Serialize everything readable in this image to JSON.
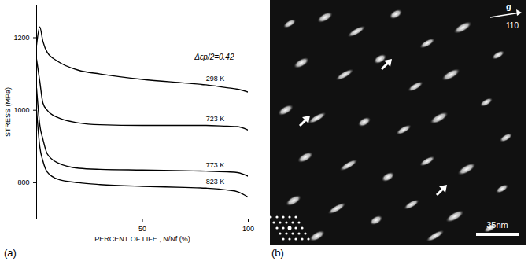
{
  "chart_data": {
    "type": "line",
    "x_label": "PERCENT OF LIFE , N/Nf (%)",
    "y_label": "STRESS (MPa)",
    "annotations": [
      "Δεp/2=0.42"
    ],
    "x": [
      0,
      1.5,
      3,
      5,
      10,
      20,
      30,
      50,
      70,
      80,
      90,
      95,
      100
    ],
    "series": [
      {
        "name": "298 K",
        "color": "#000000",
        "values": [
          1180,
          1230,
          1190,
          1160,
          1135,
          1110,
          1100,
          1085,
          1075,
          1070,
          1062,
          1058,
          1050
        ]
      },
      {
        "name": "723 K",
        "color": "#000000",
        "values": [
          1140,
          1080,
          1020,
          1000,
          980,
          965,
          960,
          958,
          958,
          958,
          956,
          955,
          945
        ]
      },
      {
        "name": "773 K",
        "color": "#000000",
        "values": [
          1060,
          960,
          920,
          880,
          855,
          840,
          837,
          835,
          833,
          832,
          830,
          828,
          818
        ]
      },
      {
        "name": "823 K",
        "color": "#000000",
        "values": [
          1000,
          900,
          860,
          830,
          810,
          800,
          795,
          790,
          787,
          785,
          780,
          775,
          760
        ]
      }
    ],
    "xlim": [
      0,
      100
    ],
    "xticks": [
      50,
      100
    ],
    "ylim": [
      700,
      1290
    ],
    "yticks": [
      800,
      1000,
      1200
    ],
    "grid": false
  },
  "micrograph": {
    "vector": "g",
    "index": "110",
    "scale_bar": "35nm"
  },
  "panel_labels": [
    "(a)",
    "(b)"
  ]
}
